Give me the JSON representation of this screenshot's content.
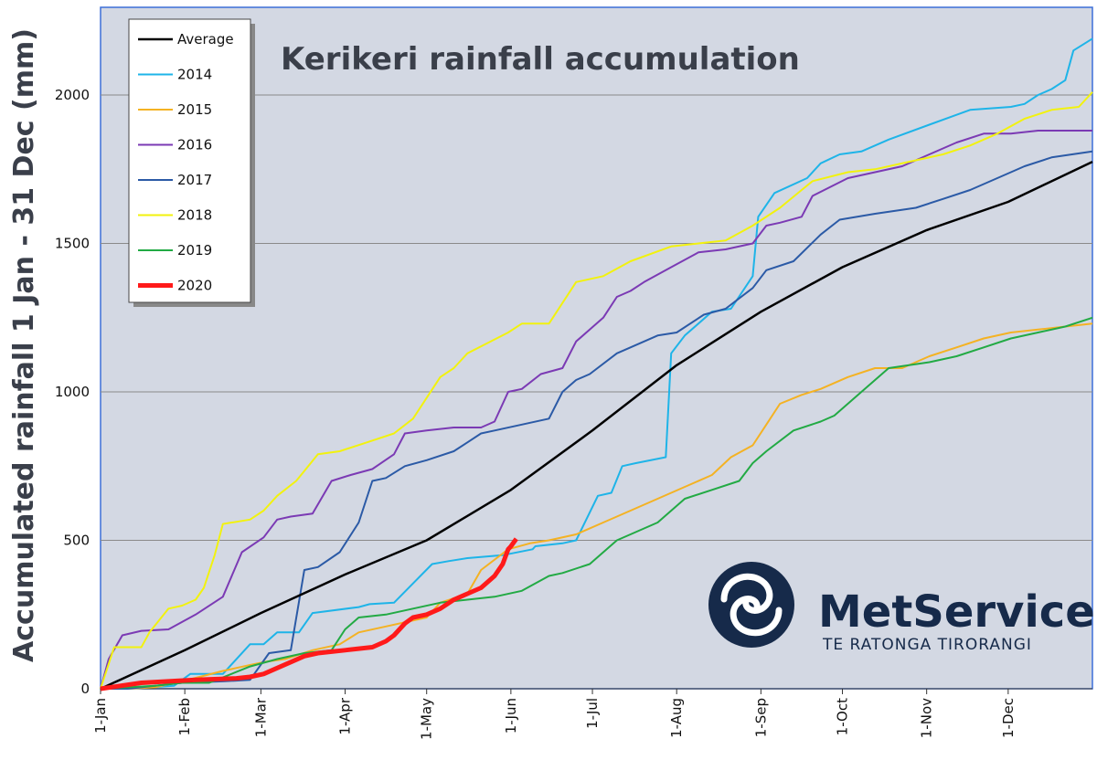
{
  "chart_data": {
    "type": "line",
    "title": "Kerikeri rainfall accumulation",
    "ylabel": "Accumulated rainfall 1 Jan - 31 Dec (mm)",
    "xlabel": "",
    "ylim": [
      0,
      2250
    ],
    "yticks": [
      0,
      500,
      1000,
      1500,
      2000
    ],
    "xticks": [
      {
        "label": "1-Jan",
        "day": 0
      },
      {
        "label": "1-Feb",
        "day": 31
      },
      {
        "label": "1-Mar",
        "day": 59
      },
      {
        "label": "1-Apr",
        "day": 90
      },
      {
        "label": "1-May",
        "day": 120
      },
      {
        "label": "1-Jun",
        "day": 151
      },
      {
        "label": "1-Jul",
        "day": 181
      },
      {
        "label": "1-Aug",
        "day": 212
      },
      {
        "label": "1-Sep",
        "day": 243
      },
      {
        "label": "1-Oct",
        "day": 273
      },
      {
        "label": "1-Nov",
        "day": 304
      },
      {
        "label": "1-Dec",
        "day": 334
      }
    ],
    "xlim": [
      0,
      365
    ],
    "grid": true,
    "legend_position": "top-left",
    "series": [
      {
        "name": "Average",
        "color": "#000000",
        "width": 2.5,
        "x": [
          0,
          31,
          59,
          90,
          120,
          151,
          181,
          212,
          243,
          273,
          304,
          334,
          365
        ],
        "y": [
          0,
          130,
          255,
          385,
          500,
          670,
          870,
          1090,
          1270,
          1420,
          1545,
          1640,
          1775
        ]
      },
      {
        "name": "2014",
        "color": "#1eb4e8",
        "width": 2,
        "x": [
          0,
          10,
          27,
          33,
          45,
          55,
          60,
          65,
          73,
          78,
          95,
          99,
          108,
          122,
          128,
          135,
          148,
          159,
          160,
          170,
          175,
          183,
          188,
          192,
          197,
          208,
          210,
          215,
          225,
          232,
          240,
          242,
          248,
          260,
          265,
          272,
          280,
          290,
          305,
          320,
          335,
          340,
          345,
          350,
          355,
          358,
          365
        ],
        "y": [
          0,
          0,
          10,
          50,
          50,
          150,
          150,
          190,
          190,
          255,
          275,
          285,
          290,
          420,
          430,
          440,
          450,
          470,
          480,
          490,
          500,
          650,
          660,
          750,
          760,
          780,
          1130,
          1190,
          1270,
          1280,
          1390,
          1590,
          1670,
          1720,
          1770,
          1800,
          1810,
          1850,
          1900,
          1950,
          1960,
          1970,
          2000,
          2020,
          2050,
          2150,
          2190
        ]
      },
      {
        "name": "2015",
        "color": "#f4b223",
        "width": 2,
        "x": [
          0,
          10,
          20,
          30,
          45,
          55,
          60,
          68,
          78,
          88,
          95,
          105,
          120,
          125,
          135,
          140,
          150,
          158,
          165,
          175,
          185,
          195,
          205,
          215,
          225,
          232,
          240,
          245,
          250,
          258,
          265,
          275,
          285,
          295,
          305,
          315,
          325,
          335,
          345,
          355,
          365
        ],
        "y": [
          0,
          0,
          5,
          25,
          60,
          80,
          90,
          100,
          130,
          150,
          190,
          210,
          240,
          290,
          320,
          400,
          470,
          490,
          500,
          520,
          560,
          600,
          640,
          680,
          720,
          780,
          820,
          890,
          960,
          990,
          1010,
          1050,
          1080,
          1080,
          1120,
          1150,
          1180,
          1200,
          1210,
          1220,
          1230
        ]
      },
      {
        "name": "2016",
        "color": "#7b3ab4",
        "width": 2,
        "x": [
          0,
          3,
          8,
          15,
          25,
          35,
          45,
          52,
          60,
          65,
          70,
          78,
          85,
          92,
          100,
          108,
          112,
          120,
          130,
          140,
          145,
          150,
          155,
          162,
          170,
          175,
          180,
          185,
          190,
          195,
          200,
          210,
          220,
          230,
          240,
          245,
          250,
          258,
          262,
          275,
          285,
          295,
          305,
          315,
          325,
          335,
          345,
          365
        ],
        "y": [
          0,
          100,
          180,
          195,
          200,
          250,
          310,
          460,
          510,
          570,
          580,
          590,
          700,
          720,
          740,
          790,
          860,
          870,
          880,
          880,
          900,
          1000,
          1010,
          1060,
          1080,
          1170,
          1210,
          1250,
          1320,
          1340,
          1370,
          1420,
          1470,
          1480,
          1500,
          1560,
          1570,
          1590,
          1660,
          1720,
          1740,
          1760,
          1800,
          1840,
          1870,
          1870,
          1880,
          1880
        ]
      },
      {
        "name": "2017",
        "color": "#2b5aa6",
        "width": 2,
        "x": [
          0,
          10,
          20,
          30,
          45,
          55,
          62,
          70,
          75,
          80,
          88,
          95,
          100,
          105,
          112,
          120,
          130,
          135,
          140,
          145,
          155,
          165,
          170,
          175,
          180,
          190,
          195,
          205,
          212,
          222,
          230,
          240,
          245,
          255,
          265,
          272,
          285,
          300,
          310,
          320,
          330,
          340,
          350,
          365
        ],
        "y": [
          0,
          0,
          10,
          20,
          25,
          30,
          120,
          130,
          400,
          410,
          460,
          560,
          700,
          710,
          750,
          770,
          800,
          830,
          860,
          870,
          890,
          910,
          1000,
          1040,
          1060,
          1130,
          1150,
          1190,
          1200,
          1260,
          1280,
          1350,
          1410,
          1440,
          1530,
          1580,
          1600,
          1620,
          1650,
          1680,
          1720,
          1760,
          1790,
          1810
        ]
      },
      {
        "name": "2018",
        "color": "#f2f20e",
        "width": 2,
        "x": [
          0,
          5,
          15,
          18,
          25,
          30,
          35,
          38,
          42,
          45,
          55,
          60,
          65,
          72,
          80,
          88,
          98,
          108,
          115,
          125,
          130,
          135,
          150,
          155,
          165,
          175,
          185,
          195,
          210,
          220,
          230,
          240,
          250,
          258,
          262,
          275,
          285,
          300,
          310,
          320,
          330,
          340,
          350,
          360,
          365
        ],
        "y": [
          0,
          140,
          140,
          190,
          270,
          280,
          300,
          340,
          450,
          555,
          570,
          600,
          650,
          700,
          790,
          800,
          830,
          860,
          910,
          1050,
          1080,
          1130,
          1200,
          1230,
          1230,
          1370,
          1390,
          1440,
          1490,
          1500,
          1510,
          1560,
          1620,
          1680,
          1710,
          1740,
          1750,
          1780,
          1800,
          1830,
          1870,
          1920,
          1950,
          1960,
          2010
        ]
      },
      {
        "name": "2019",
        "color": "#22aa44",
        "width": 2,
        "x": [
          0,
          20,
          30,
          40,
          55,
          65,
          75,
          85,
          90,
          95,
          105,
          115,
          125,
          135,
          145,
          155,
          165,
          170,
          180,
          190,
          205,
          215,
          225,
          235,
          240,
          245,
          255,
          265,
          270,
          280,
          290,
          305,
          315,
          325,
          335,
          345,
          355,
          365
        ],
        "y": [
          0,
          10,
          20,
          20,
          75,
          100,
          120,
          130,
          200,
          240,
          250,
          270,
          290,
          300,
          310,
          330,
          380,
          390,
          420,
          500,
          560,
          640,
          670,
          700,
          760,
          800,
          870,
          900,
          920,
          1000,
          1080,
          1100,
          1120,
          1150,
          1180,
          1200,
          1220,
          1250
        ]
      },
      {
        "name": "2020",
        "color": "#ff1a1a",
        "width": 5,
        "x": [
          0,
          15,
          25,
          35,
          50,
          55,
          60,
          65,
          70,
          75,
          80,
          85,
          90,
          95,
          100,
          105,
          108,
          112,
          115,
          120,
          125,
          130,
          135,
          140,
          145,
          148,
          150,
          151,
          153
        ],
        "y": [
          0,
          20,
          25,
          30,
          35,
          40,
          50,
          70,
          90,
          110,
          120,
          125,
          130,
          135,
          140,
          160,
          180,
          220,
          240,
          250,
          270,
          300,
          320,
          340,
          380,
          420,
          470,
          480,
          505
        ]
      }
    ]
  },
  "logo": {
    "name": "MetService",
    "tagline": "TE RATONGA TIRORANGI"
  }
}
